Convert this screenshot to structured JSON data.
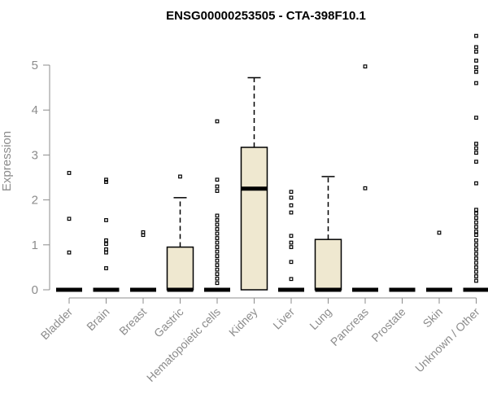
{
  "chart_data": {
    "type": "box",
    "title": "ENSG00000253505 - CTA-398F10.1",
    "ylabel": "Expression",
    "xlabel": "",
    "ylim": [
      0,
      5.8
    ],
    "yticks": [
      0,
      1,
      2,
      3,
      4,
      5
    ],
    "grid": false,
    "categories": [
      "Bladder",
      "Brain",
      "Breast",
      "Gastric",
      "Hematopoietic cells",
      "Kidney",
      "Liver",
      "Lung",
      "Pancreas",
      "Prostate",
      "Skin",
      "Unknown / Other"
    ],
    "boxes": [
      {
        "category": "Bladder",
        "q1": 0,
        "median": 0,
        "q3": 0,
        "whisker_low": 0,
        "whisker_high": 0,
        "outliers": [
          2.6,
          1.58,
          0.83
        ]
      },
      {
        "category": "Brain",
        "q1": 0,
        "median": 0,
        "q3": 0,
        "whisker_low": 0,
        "whisker_high": 0,
        "outliers": [
          2.45,
          2.4,
          1.55,
          1.1,
          1.02,
          0.9,
          0.83,
          0.48
        ]
      },
      {
        "category": "Breast",
        "q1": 0,
        "median": 0,
        "q3": 0,
        "whisker_low": 0,
        "whisker_high": 0,
        "outliers": [
          1.28,
          1.22
        ]
      },
      {
        "category": "Gastric",
        "q1": 0,
        "median": 0,
        "q3": 0.95,
        "whisker_low": 0,
        "whisker_high": 2.05,
        "outliers": [
          2.52
        ]
      },
      {
        "category": "Hematopoietic cells",
        "q1": 0,
        "median": 0,
        "q3": 0,
        "whisker_low": 0,
        "whisker_high": 0,
        "outliers": [
          3.75,
          2.45,
          2.3,
          2.2,
          1.65,
          1.55,
          1.45,
          1.35,
          1.25,
          1.15,
          1.05,
          0.95,
          0.85,
          0.75,
          0.65,
          0.55,
          0.45,
          0.35,
          0.25,
          0.15
        ]
      },
      {
        "category": "Kidney",
        "q1": 0,
        "median": 2.25,
        "q3": 3.17,
        "whisker_low": 0,
        "whisker_high": 4.72,
        "outliers": []
      },
      {
        "category": "Liver",
        "q1": 0,
        "median": 0,
        "q3": 0,
        "whisker_low": 0,
        "whisker_high": 0,
        "outliers": [
          2.18,
          2.05,
          1.88,
          1.72,
          1.2,
          1.05,
          0.95,
          0.62,
          0.24
        ]
      },
      {
        "category": "Lung",
        "q1": 0,
        "median": 0,
        "q3": 1.12,
        "whisker_low": 0,
        "whisker_high": 2.52,
        "outliers": []
      },
      {
        "category": "Pancreas",
        "q1": 0,
        "median": 0,
        "q3": 0,
        "whisker_low": 0,
        "whisker_high": 0,
        "outliers": [
          4.97,
          2.26
        ]
      },
      {
        "category": "Prostate",
        "q1": 0,
        "median": 0,
        "q3": 0,
        "whisker_low": 0,
        "whisker_high": 0,
        "outliers": []
      },
      {
        "category": "Skin",
        "q1": 0,
        "median": 0,
        "q3": 0,
        "whisker_low": 0,
        "whisker_high": 0,
        "outliers": [
          1.27
        ]
      },
      {
        "category": "Unknown / Other",
        "q1": 0,
        "median": 0,
        "q3": 0,
        "whisker_low": 0,
        "whisker_high": 0,
        "outliers": [
          5.65,
          5.4,
          5.3,
          5.1,
          4.95,
          4.85,
          4.6,
          3.83,
          3.25,
          3.15,
          3.05,
          2.85,
          2.37,
          1.78,
          1.7,
          1.6,
          1.5,
          1.4,
          1.3,
          1.22,
          1.1,
          1.0,
          0.9,
          0.8,
          0.7,
          0.6,
          0.5,
          0.4,
          0.3,
          0.2
        ]
      }
    ],
    "colors": {
      "box_fill": "#efe8d0",
      "axis": "#8c8c8c",
      "stroke": "#000000"
    }
  }
}
